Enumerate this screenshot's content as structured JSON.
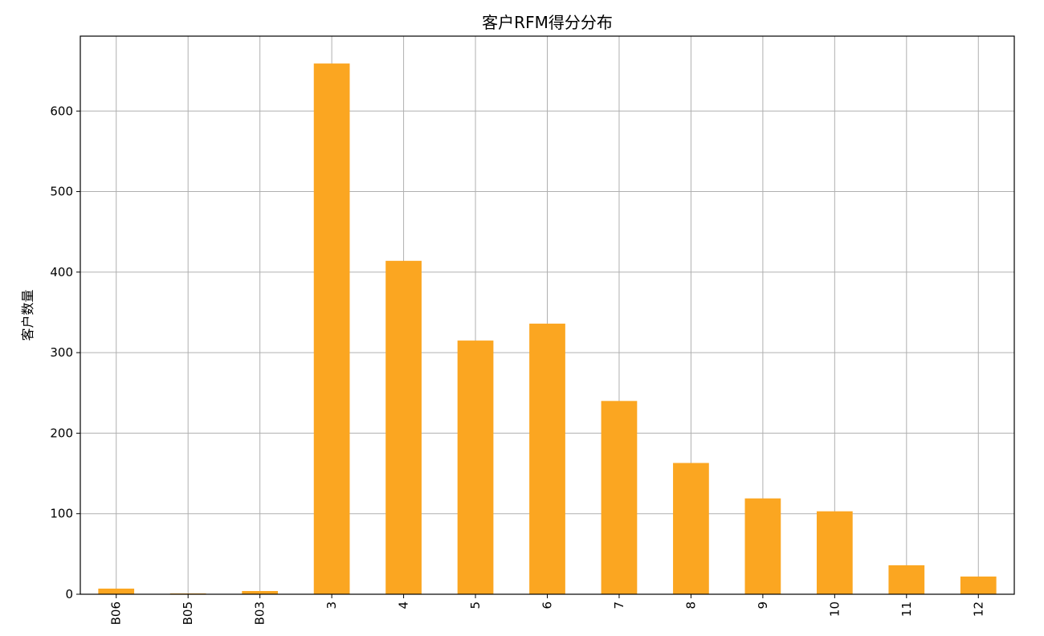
{
  "chart_data": {
    "type": "bar",
    "title": "客户RFM得分分布",
    "xlabel": "",
    "ylabel": "客户数量",
    "categories": [
      "B06",
      "B05",
      "B03",
      "3",
      "4",
      "5",
      "6",
      "7",
      "8",
      "9",
      "10",
      "11",
      "12"
    ],
    "values": [
      7,
      1,
      4,
      659,
      414,
      315,
      336,
      240,
      163,
      119,
      103,
      36,
      22
    ],
    "ylim": [
      0,
      693
    ],
    "yticks": [
      0,
      100,
      200,
      300,
      400,
      500,
      600
    ],
    "x_tick_rotation": 90,
    "grid": true,
    "legend": "none",
    "bar_color": "#fba621",
    "grid_color": "#b0b0b0"
  }
}
